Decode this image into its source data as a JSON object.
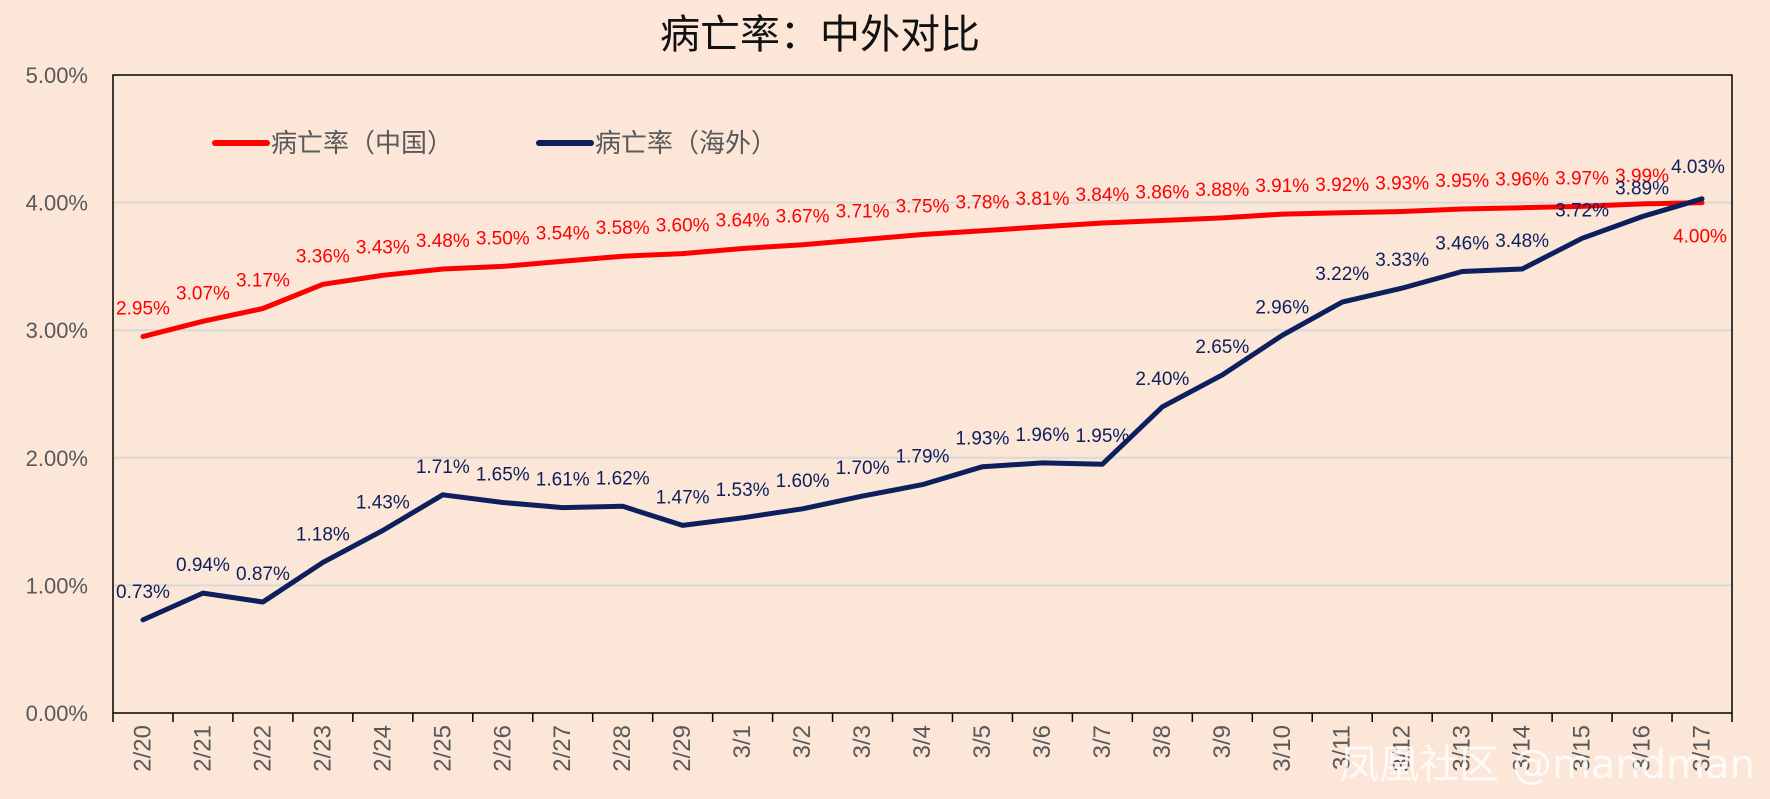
{
  "chart_data": {
    "type": "line",
    "title": "病亡率：中外对比",
    "categories": [
      "2/20",
      "2/21",
      "2/22",
      "2/23",
      "2/24",
      "2/25",
      "2/26",
      "2/27",
      "2/28",
      "2/29",
      "3/1",
      "3/2",
      "3/3",
      "3/4",
      "3/5",
      "3/6",
      "3/7",
      "3/8",
      "3/9",
      "3/10",
      "3/11",
      "3/12",
      "3/13",
      "3/14",
      "3/15",
      "3/16",
      "3/17"
    ],
    "yticks": [
      "0.00%",
      "1.00%",
      "2.00%",
      "3.00%",
      "4.00%",
      "5.00%"
    ],
    "ylim": [
      0,
      5
    ],
    "grid": true,
    "legend_position": "top-left",
    "series": [
      {
        "name": "病亡率（中国）",
        "color": "#ff0000",
        "values": [
          2.95,
          3.07,
          3.17,
          3.36,
          3.43,
          3.48,
          3.5,
          3.54,
          3.58,
          3.6,
          3.64,
          3.67,
          3.71,
          3.75,
          3.78,
          3.81,
          3.84,
          3.86,
          3.88,
          3.91,
          3.92,
          3.93,
          3.95,
          3.96,
          3.97,
          3.99,
          4.0
        ],
        "labels": [
          "2.95%",
          "3.07%",
          "3.17%",
          "3.36%",
          "3.43%",
          "3.48%",
          "3.50%",
          "3.54%",
          "3.58%",
          "3.60%",
          "3.64%",
          "3.67%",
          "3.71%",
          "3.75%",
          "3.78%",
          "3.81%",
          "3.84%",
          "3.86%",
          "3.88%",
          "3.91%",
          "3.92%",
          "3.93%",
          "3.95%",
          "3.96%",
          "3.97%",
          "3.99%",
          "4.00%"
        ]
      },
      {
        "name": "病亡率（海外）",
        "color": "#0d1f5c",
        "values": [
          0.73,
          0.94,
          0.87,
          1.18,
          1.43,
          1.71,
          1.65,
          1.61,
          1.62,
          1.47,
          1.53,
          1.6,
          1.7,
          1.79,
          1.93,
          1.96,
          1.95,
          2.4,
          2.65,
          2.96,
          3.22,
          3.33,
          3.46,
          3.48,
          3.72,
          3.89,
          4.03
        ],
        "labels": [
          "0.73%",
          "0.94%",
          "0.87%",
          "1.18%",
          "1.43%",
          "1.71%",
          "1.65%",
          "1.61%",
          "1.62%",
          "1.47%",
          "1.53%",
          "1.60%",
          "1.70%",
          "1.79%",
          "1.93%",
          "1.96%",
          "1.95%",
          "2.40%",
          "2.65%",
          "2.96%",
          "3.22%",
          "3.33%",
          "3.46%",
          "3.48%",
          "3.72%",
          "3.89%",
          "4.03%"
        ]
      }
    ]
  },
  "watermark": "凤凰社区 @mandman",
  "colors": {
    "background": "#fbe6d8",
    "axis": "#000000",
    "grid": "#d9d9d9"
  }
}
